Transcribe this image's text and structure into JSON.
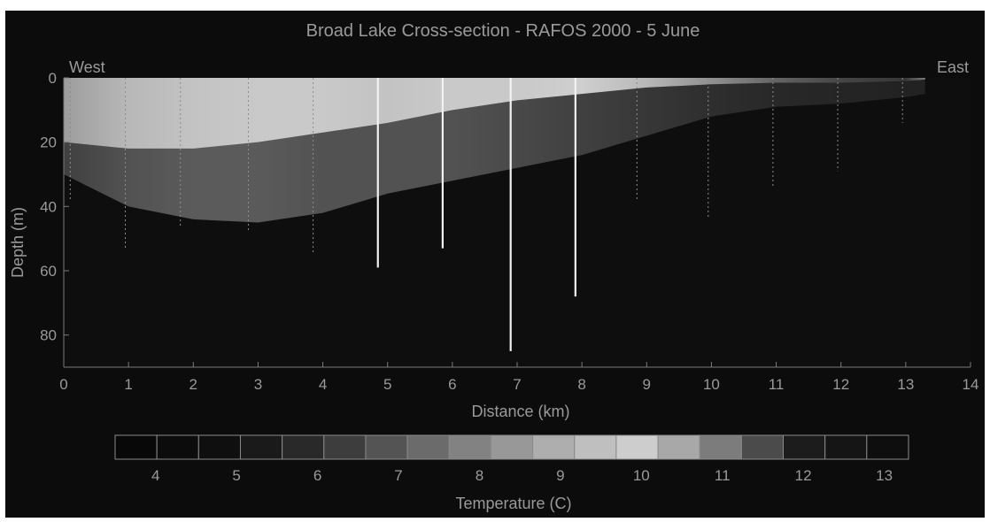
{
  "chart_data": {
    "type": "heatmap",
    "title": "Broad Lake Cross-section - RAFOS 2000 - 5 June",
    "xlabel": "Distance (km)",
    "ylabel": "Depth (m)",
    "xlim": [
      0,
      14
    ],
    "ylim": [
      0,
      90
    ],
    "y_inverted": true,
    "x_ticks": [
      0,
      1,
      2,
      3,
      4,
      5,
      6,
      7,
      8,
      9,
      10,
      11,
      12,
      13,
      14
    ],
    "y_ticks": [
      0,
      20,
      40,
      60,
      80
    ],
    "annotations": {
      "west": "West",
      "east": "East"
    },
    "colorbar": {
      "label": "Temperature (C)",
      "range": [
        3.5,
        13.3
      ],
      "ticks": [
        4,
        5,
        6,
        7,
        8,
        9,
        10,
        11,
        12,
        13
      ]
    },
    "profiles": [
      {
        "x": 0.1,
        "depth": 38
      },
      {
        "x": 0.95,
        "depth": 53
      },
      {
        "x": 1.8,
        "depth": 46
      },
      {
        "x": 2.85,
        "depth": 48
      },
      {
        "x": 3.85,
        "depth": 55
      },
      {
        "x": 4.85,
        "depth": 59
      },
      {
        "x": 5.85,
        "depth": 53
      },
      {
        "x": 6.9,
        "depth": 85
      },
      {
        "x": 7.9,
        "depth": 68
      },
      {
        "x": 8.85,
        "depth": 38
      },
      {
        "x": 9.95,
        "depth": 44
      },
      {
        "x": 10.95,
        "depth": 34
      },
      {
        "x": 11.95,
        "depth": 29
      },
      {
        "x": 12.95,
        "depth": 14
      }
    ],
    "highlighted_profiles": [
      4.85,
      5.85,
      6.9,
      7.9
    ],
    "surface_layer": {
      "x": [
        0,
        1,
        2,
        3,
        4,
        5,
        6,
        7,
        8,
        9,
        10,
        11,
        12,
        13,
        13.3
      ],
      "warm_bottom_depth": [
        20,
        22,
        22,
        20,
        17,
        14,
        10,
        7,
        5,
        3,
        2,
        1.5,
        1.5,
        1,
        0.5
      ],
      "mixed_bottom_depth": [
        30,
        40,
        44,
        45,
        42,
        36,
        32,
        28,
        24,
        18,
        12,
        9,
        8,
        6,
        5
      ],
      "surface_temperature": [
        8.5,
        9.2,
        9.6,
        9.8,
        9.8,
        9.6,
        9.8,
        9.8,
        10,
        9.2,
        8.2,
        7.2,
        6.5,
        6.2,
        7.8
      ],
      "mixed_temperature": [
        6.4,
        6.8,
        7.0,
        7.0,
        6.8,
        6.8,
        6.8,
        6.6,
        6.4,
        6.2,
        6.0,
        5.8,
        5.7,
        5.6,
        5.6
      ]
    },
    "deep_temperature": 4.0,
    "grid": false
  }
}
